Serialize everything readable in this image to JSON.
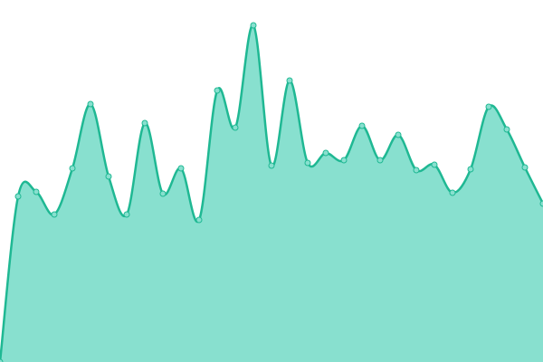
{
  "chart_data": {
    "type": "area",
    "categories": [
      null,
      null,
      null,
      null,
      null,
      null,
      null,
      null,
      null,
      null,
      null,
      null,
      null,
      null,
      null,
      null,
      null,
      null,
      null,
      null,
      null,
      null,
      null,
      null,
      null,
      null,
      null,
      null,
      null,
      null,
      null
    ],
    "values": [
      0,
      183,
      188,
      163,
      214,
      285,
      205,
      163,
      264,
      186,
      214,
      157,
      300,
      259,
      372,
      217,
      311,
      220,
      231,
      223,
      261,
      223,
      251,
      212,
      218,
      187,
      213,
      282,
      257,
      215,
      175
    ],
    "ylim": [
      0,
      400
    ],
    "color": "#1fb893",
    "fill_color": "#88e0cf"
  }
}
